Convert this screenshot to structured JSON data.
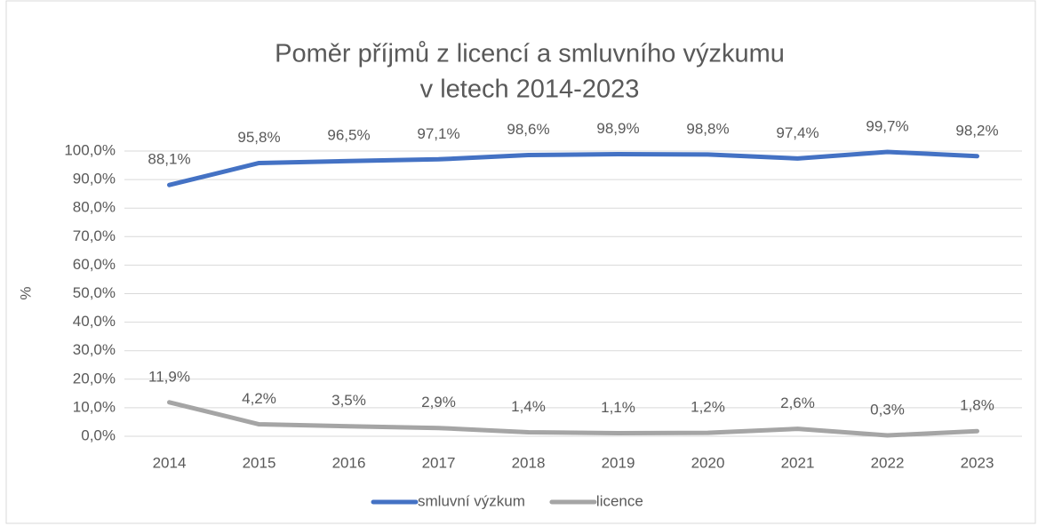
{
  "chart_data": {
    "type": "line",
    "title": [
      "Poměr příjmů z licencí a smluvního výzkumu",
      "v letech  2014-2023"
    ],
    "y_label": "%",
    "categories": [
      "2014",
      "2015",
      "2016",
      "2017",
      "2018",
      "2019",
      "2020",
      "2021",
      "2022",
      "2023"
    ],
    "series": [
      {
        "name": "smluvní výzkum",
        "color": "#4472c4",
        "values": [
          88.1,
          95.8,
          96.5,
          97.1,
          98.6,
          98.9,
          98.8,
          97.4,
          99.7,
          98.2
        ],
        "value_labels": [
          "88,1%",
          "95,8%",
          "96,5%",
          "97,1%",
          "98,6%",
          "98,9%",
          "98,8%",
          "97,4%",
          "99,7%",
          "98,2%"
        ]
      },
      {
        "name": "licence",
        "color": "#a5a5a5",
        "values": [
          11.9,
          4.2,
          3.5,
          2.9,
          1.4,
          1.1,
          1.2,
          2.6,
          0.3,
          1.8
        ],
        "value_labels": [
          "11,9%",
          "4,2%",
          "3,5%",
          "2,9%",
          "1,4%",
          "1,1%",
          "1,2%",
          "2,6%",
          "0,3%",
          "1,8%"
        ]
      }
    ],
    "ylim": [
      0,
      100
    ],
    "yticks": [
      {
        "value": 0,
        "label": "0,0%"
      },
      {
        "value": 10,
        "label": "10,0%"
      },
      {
        "value": 20,
        "label": "20,0%"
      },
      {
        "value": 30,
        "label": "30,0%"
      },
      {
        "value": 40,
        "label": "40,0%"
      },
      {
        "value": 50,
        "label": "50,0%"
      },
      {
        "value": 60,
        "label": "60,0%"
      },
      {
        "value": 70,
        "label": "70,0%"
      },
      {
        "value": 80,
        "label": "80,0%"
      },
      {
        "value": 90,
        "label": "90,0%"
      },
      {
        "value": 100,
        "label": "100,0%"
      }
    ],
    "grid": true,
    "legend": "bottom"
  }
}
